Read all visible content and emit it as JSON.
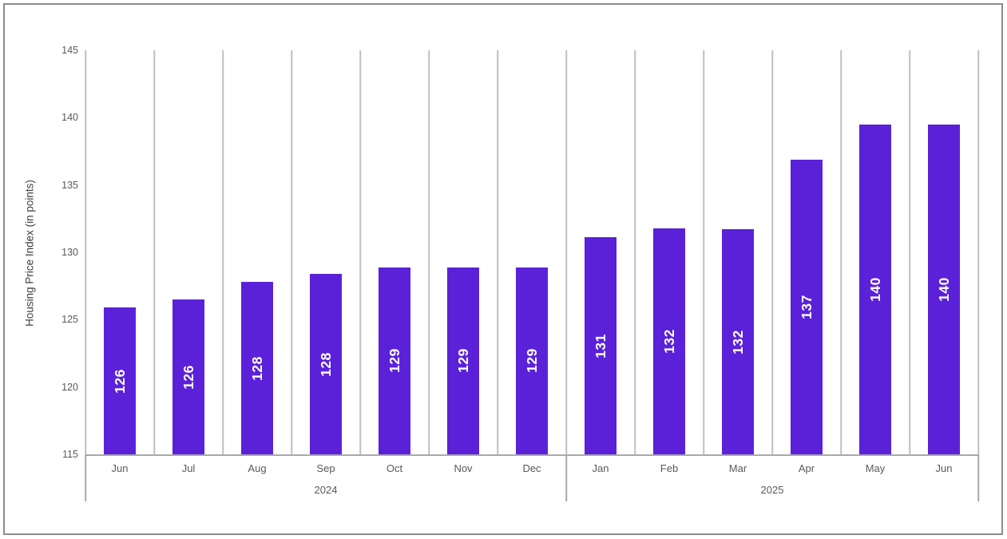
{
  "figure": {
    "background_color": "#ffffff",
    "border_color": "#8c8c8c"
  },
  "chart_data": {
    "type": "bar",
    "title": "",
    "xlabel": "",
    "ylabel": "Housing Price Index (in points)",
    "ylim": [
      115,
      145
    ],
    "yticks": [
      "115",
      "120",
      "125",
      "130",
      "135",
      "140",
      "145"
    ],
    "grid": "vertical category separators only",
    "legend": "none",
    "categories": [
      "Jun",
      "Jul",
      "Aug",
      "Sep",
      "Oct",
      "Nov",
      "Dec",
      "Jan",
      "Feb",
      "Mar",
      "Apr",
      "May",
      "Jun"
    ],
    "values": [
      125.9,
      126.5,
      127.8,
      128.4,
      128.9,
      128.9,
      128.9,
      131.1,
      131.8,
      131.7,
      136.9,
      139.5,
      139.5
    ],
    "bar_labels": [
      "126",
      "126",
      "128",
      "128",
      "129",
      "129",
      "129",
      "131",
      "132",
      "132",
      "137",
      "140",
      "140"
    ],
    "year_groups": [
      {
        "label": "2024",
        "months": 7
      },
      {
        "label": "2025",
        "months": 6
      }
    ],
    "colors": {
      "bar": "#5b21d9",
      "bar_label": "#ffffff",
      "gridline": "#bfbfbf",
      "axis_line": "#a9a9a9",
      "tick_text": "#595959",
      "axis_title_text": "#404040"
    }
  }
}
